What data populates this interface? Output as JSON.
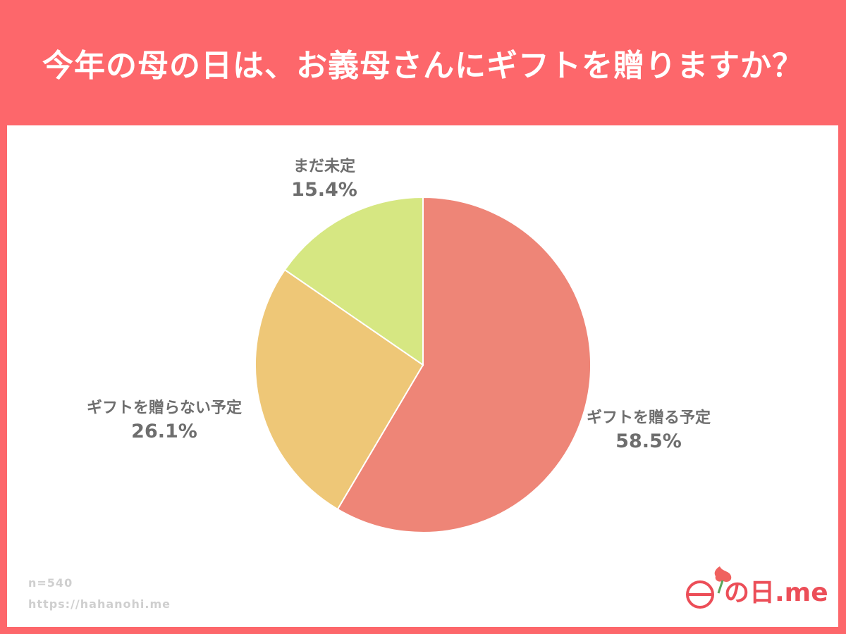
{
  "header": {
    "title": "今年の母の日は、お義母さんにギフトを贈りますか？"
  },
  "chart_data": {
    "type": "pie",
    "title": "今年の母の日は、お義母さんにギフトを贈りますか？",
    "start_angle_deg": 0,
    "direction": "clockwise",
    "slices": [
      {
        "label": "ギフトを贈る予定",
        "value": 58.5,
        "value_label": "58.5%",
        "color": "#ee8577"
      },
      {
        "label": "ギフトを贈らない予定",
        "value": 26.1,
        "value_label": "26.1%",
        "color": "#eec777"
      },
      {
        "label": "まだ未定",
        "value": 15.4,
        "value_label": "15.4%",
        "color": "#d6e782"
      }
    ]
  },
  "footer": {
    "sample": "n=540",
    "url": "https://hahanohi.me"
  },
  "logo": {
    "text": "の日.me",
    "flower_color": "#f0625f"
  }
}
